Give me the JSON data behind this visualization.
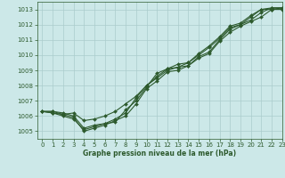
{
  "title": "Graphe pression niveau de la mer (hPa)",
  "background_color": "#cce8e8",
  "grid_color": "#aacccc",
  "line_color": "#2d5a2d",
  "xlim": [
    -0.5,
    23
  ],
  "ylim": [
    1004.5,
    1013.5
  ],
  "yticks": [
    1005,
    1006,
    1007,
    1008,
    1009,
    1010,
    1011,
    1012,
    1013
  ],
  "xticks": [
    0,
    1,
    2,
    3,
    4,
    5,
    6,
    7,
    8,
    9,
    10,
    11,
    12,
    13,
    14,
    15,
    16,
    17,
    18,
    19,
    20,
    21,
    22,
    23
  ],
  "series": [
    [
      1006.3,
      1006.3,
      1006.2,
      1006.0,
      1005.2,
      1005.4,
      1005.5,
      1005.6,
      1006.4,
      1007.0,
      1007.9,
      1008.8,
      1009.1,
      1009.2,
      1009.5,
      1010.0,
      1010.5,
      1011.1,
      1011.8,
      1012.0,
      1012.5,
      1013.0,
      1013.0,
      1013.1
    ],
    [
      1006.3,
      1006.2,
      1006.0,
      1005.8,
      1005.1,
      1005.3,
      1005.5,
      1005.8,
      1006.2,
      1007.2,
      1008.0,
      1008.5,
      1009.0,
      1009.2,
      1009.3,
      1009.9,
      1010.2,
      1011.0,
      1011.7,
      1012.0,
      1012.3,
      1012.8,
      1013.1,
      1013.1
    ],
    [
      1006.3,
      1006.2,
      1006.1,
      1005.9,
      1005.0,
      1005.2,
      1005.4,
      1005.7,
      1006.0,
      1006.8,
      1007.8,
      1008.3,
      1008.9,
      1009.0,
      1009.3,
      1009.8,
      1010.1,
      1010.9,
      1011.5,
      1011.9,
      1012.2,
      1012.5,
      1013.0,
      1013.0
    ],
    [
      1006.3,
      1006.3,
      1006.1,
      1006.2,
      1005.7,
      1005.8,
      1006.0,
      1006.3,
      1006.8,
      1007.3,
      1008.0,
      1008.6,
      1009.1,
      1009.4,
      1009.5,
      1010.1,
      1010.6,
      1011.2,
      1011.9,
      1012.1,
      1012.6,
      1013.0,
      1013.1,
      1013.1
    ]
  ],
  "tick_fontsize": 5,
  "title_fontsize": 5.5,
  "marker_size": 2.0,
  "line_width": 0.8
}
